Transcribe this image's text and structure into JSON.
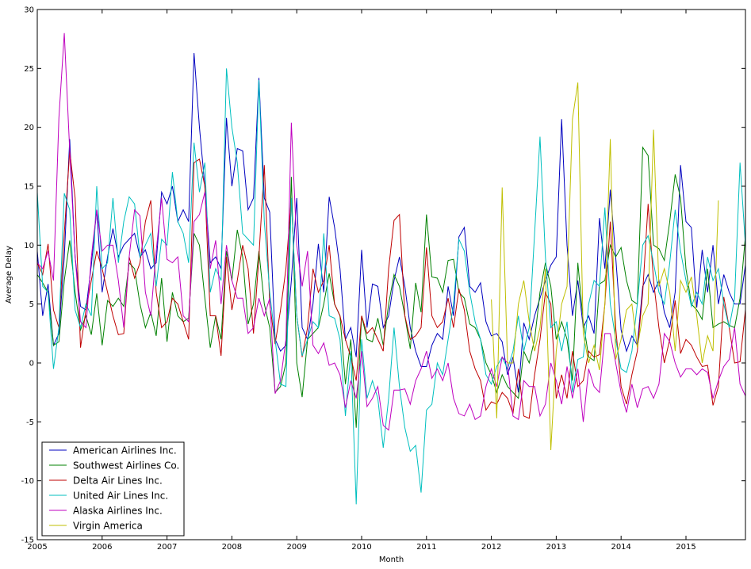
{
  "chart_data": {
    "type": "line",
    "title": "",
    "xlabel": "Month",
    "ylabel": "Average Delay",
    "xlim": [
      2005.0,
      2015.917
    ],
    "ylim": [
      -15,
      30
    ],
    "x_ticks": [
      2005,
      2006,
      2007,
      2008,
      2009,
      2010,
      2011,
      2012,
      2013,
      2014,
      2015
    ],
    "y_ticks": [
      -15,
      -10,
      -5,
      0,
      5,
      10,
      15,
      20,
      25,
      30
    ],
    "grid": false,
    "legend_position": "bottom-left",
    "series": [
      {
        "name": "American Airlines Inc.",
        "color": "#0000bf",
        "x_start": 2005.0,
        "values": [
          9.5,
          4.0,
          6.7,
          1.5,
          2.5,
          9.0,
          19.0,
          9.0,
          4.8,
          4.5,
          8.3,
          13.0,
          6.0,
          9.0,
          11.4,
          9.0,
          10.0,
          10.5,
          11.0,
          9.0,
          9.6,
          8.0,
          8.5,
          14.5,
          13.5,
          15.0,
          12.0,
          13.0,
          12.0,
          26.3,
          20.0,
          15.0,
          8.5,
          9.0,
          8.0,
          20.8,
          15.0,
          18.2,
          18.0,
          13.0,
          14.0,
          24.2,
          14.0,
          12.8,
          2.0,
          1.0,
          1.5,
          7.0,
          14.0,
          3.0,
          2.0,
          5.0,
          10.1,
          6.0,
          14.1,
          11.5,
          8.0,
          2.0,
          3.0,
          0.5,
          9.6,
          3.0,
          6.7,
          6.5,
          3.0,
          4.0,
          7.0,
          9.0,
          6.5,
          3.0,
          1.0,
          -0.3,
          -0.3,
          1.5,
          2.5,
          2.0,
          6.5,
          4.0,
          10.7,
          11.5,
          6.5,
          6.0,
          6.8,
          3.5,
          2.3,
          2.5,
          1.8,
          -1.0,
          0.5,
          -2.5,
          3.4,
          2.0,
          4.0,
          5.5,
          7.0,
          8.3,
          9.0,
          20.7,
          10.0,
          4.0,
          7.0,
          3.0,
          4.0,
          2.5,
          12.3,
          8.0,
          14.7,
          9.0,
          2.8,
          1.0,
          2.3,
          1.5,
          6.5,
          7.5,
          6.0,
          7.0,
          4.3,
          3.0,
          6.0,
          16.8,
          12.0,
          11.5,
          4.7,
          9.6,
          6.0,
          10.0,
          5.0,
          7.5,
          6.0,
          5.0,
          5.0,
          8.3,
          3.0,
          3.0,
          -1.5,
          -0.5,
          1.0,
          4.0
        ]
      },
      {
        "name": "Southwest Airlines Co.",
        "color": "#008000",
        "x_start": 2005.0,
        "values": [
          7.5,
          6.8,
          6.0,
          1.5,
          1.8,
          7.0,
          10.4,
          6.0,
          2.8,
          4.0,
          2.4,
          5.9,
          1.5,
          5.3,
          4.8,
          5.5,
          4.8,
          8.5,
          8.0,
          5.0,
          3.0,
          4.3,
          2.3,
          7.2,
          1.8,
          6.0,
          4.0,
          3.5,
          3.8,
          11.0,
          10.0,
          5.5,
          1.3,
          4.0,
          2.0,
          9.5,
          7.0,
          11.3,
          9.0,
          3.3,
          5.0,
          9.5,
          5.0,
          3.0,
          -2.5,
          -2.0,
          0.0,
          15.8,
          0.0,
          -2.9,
          2.0,
          2.5,
          3.0,
          5.0,
          7.6,
          5.0,
          4.0,
          -1.8,
          2.0,
          -5.5,
          4.0,
          2.0,
          1.8,
          3.8,
          1.5,
          5.0,
          7.5,
          6.5,
          4.0,
          1.2,
          6.8,
          4.3,
          12.6,
          7.3,
          7.2,
          6.0,
          8.7,
          8.8,
          6.0,
          5.5,
          3.3,
          3.0,
          2.0,
          0.0,
          -1.0,
          -2.5,
          -1.0,
          -2.0,
          -2.5,
          -3.0,
          1.0,
          0.0,
          2.0,
          6.0,
          8.5,
          6.5,
          2.0,
          3.5,
          2.0,
          -1.5,
          8.5,
          3.5,
          0.5,
          0.2,
          6.7,
          7.0,
          10.0,
          9.0,
          9.8,
          7.0,
          5.3,
          5.0,
          18.3,
          17.6,
          10.0,
          9.7,
          8.7,
          12.0,
          16.0,
          14.0,
          8.0,
          5.0,
          4.5,
          3.7,
          8.0,
          3.0,
          3.3,
          3.5,
          3.2,
          3.0,
          5.5,
          10.8,
          10.5,
          5.0,
          0.5,
          0.0,
          3.0,
          7.0
        ]
      },
      {
        "name": "Delta Air Lines Inc.",
        "color": "#bf0000",
        "x_start": 2005.0,
        "values": [
          8.5,
          7.5,
          10.1,
          4.5,
          3.0,
          11.0,
          18.0,
          14.0,
          1.3,
          4.5,
          7.0,
          9.5,
          8.0,
          6.0,
          4.0,
          2.4,
          2.5,
          9.0,
          7.2,
          8.5,
          12.0,
          13.8,
          6.0,
          3.0,
          3.5,
          5.5,
          5.0,
          3.5,
          2.0,
          17.0,
          17.3,
          15.0,
          4.0,
          4.0,
          0.6,
          9.0,
          4.5,
          7.0,
          10.0,
          8.0,
          2.5,
          9.0,
          16.8,
          5.0,
          1.6,
          4.5,
          8.0,
          14.0,
          4.0,
          0.5,
          3.0,
          8.0,
          6.0,
          7.0,
          10.0,
          5.0,
          4.0,
          2.0,
          0.5,
          -1.5,
          4.0,
          2.5,
          3.0,
          2.0,
          1.0,
          8.0,
          12.1,
          12.6,
          4.0,
          2.0,
          2.3,
          3.0,
          9.8,
          4.0,
          3.0,
          3.5,
          5.5,
          3.0,
          6.3,
          4.5,
          1.0,
          -0.5,
          -1.5,
          -4.0,
          -3.3,
          -3.5,
          -2.5,
          -3.0,
          -4.3,
          -0.5,
          -4.5,
          -4.7,
          -1.0,
          2.0,
          6.0,
          5.0,
          -3.0,
          -1.0,
          -3.0,
          1.0,
          -2.0,
          -1.5,
          1.0,
          0.5,
          0.7,
          5.0,
          12.0,
          3.0,
          -2.0,
          -3.5,
          -1.0,
          1.0,
          6.0,
          13.5,
          7.0,
          3.0,
          0.0,
          2.0,
          5.3,
          0.8,
          2.0,
          1.5,
          0.5,
          -0.3,
          -0.2,
          -3.6,
          -2.0,
          5.6,
          3.0,
          0.0,
          0.1,
          4.5,
          1.0,
          0.0,
          -3.7,
          -5.0,
          -2.0,
          4.0
        ]
      },
      {
        "name": "United Air Lines Inc.",
        "color": "#00bfbf",
        "x_start": 2005.0,
        "values": [
          14.5,
          6.5,
          6.0,
          -0.5,
          3.0,
          14.4,
          13.0,
          4.5,
          3.0,
          5.0,
          4.0,
          15.0,
          8.0,
          8.5,
          14.0,
          8.5,
          12.0,
          14.1,
          13.5,
          9.0,
          10.0,
          11.0,
          6.5,
          10.5,
          10.0,
          16.2,
          12.0,
          11.0,
          8.5,
          18.7,
          14.5,
          17.0,
          6.0,
          8.0,
          7.0,
          25.0,
          20.0,
          17.0,
          11.0,
          10.5,
          10.0,
          24.0,
          12.0,
          6.0,
          2.0,
          -1.8,
          -2.0,
          14.0,
          4.0,
          0.6,
          2.0,
          3.5,
          3.0,
          11.0,
          4.0,
          3.8,
          2.0,
          -4.5,
          1.0,
          -12.0,
          2.0,
          -3.0,
          -1.5,
          -3.0,
          -7.2,
          -3.0,
          3.0,
          -2.0,
          -5.5,
          -7.5,
          -7.0,
          -11.0,
          -4.0,
          -3.5,
          0.0,
          -1.0,
          2.0,
          5.0,
          10.5,
          9.5,
          6.0,
          3.5,
          2.0,
          -1.0,
          -1.8,
          -0.3,
          0.5,
          -0.5,
          1.0,
          4.0,
          1.0,
          3.0,
          11.0,
          19.2,
          9.0,
          3.0,
          3.5,
          1.0,
          3.5,
          -2.5,
          0.3,
          0.5,
          5.0,
          7.0,
          6.5,
          13.2,
          5.0,
          2.0,
          -0.5,
          -0.8,
          1.0,
          5.0,
          10.0,
          10.8,
          8.5,
          6.0,
          5.0,
          8.5,
          13.0,
          9.5,
          7.0,
          4.8,
          6.0,
          5.0,
          9.0,
          7.0,
          8.0,
          5.0,
          3.0,
          5.5,
          17.0,
          10.0,
          2.0,
          0.0,
          -2.0,
          0.5,
          6.0
        ]
      },
      {
        "name": "Alaska Airlines Inc.",
        "color": "#bf00bf",
        "x_start": 2005.0,
        "values": [
          8.5,
          8.0,
          9.5,
          7.0,
          20.8,
          28.0,
          18.0,
          9.0,
          3.5,
          3.0,
          9.0,
          13.0,
          9.5,
          10.0,
          10.0,
          7.0,
          3.0,
          9.0,
          13.0,
          12.5,
          6.0,
          4.0,
          9.5,
          14.0,
          8.8,
          8.5,
          9.0,
          4.0,
          3.5,
          12.0,
          12.6,
          14.5,
          8.0,
          10.4,
          5.0,
          10.0,
          7.0,
          5.5,
          5.5,
          2.5,
          3.0,
          5.5,
          4.0,
          5.5,
          -2.6,
          -1.5,
          2.0,
          20.4,
          10.0,
          6.5,
          9.5,
          1.5,
          0.8,
          1.7,
          -0.2,
          0.0,
          -1.0,
          -3.8,
          -1.5,
          -3.0,
          1.0,
          -3.7,
          -3.0,
          -2.0,
          -5.3,
          -5.7,
          -2.3,
          -2.3,
          -2.2,
          -3.5,
          -1.5,
          -0.5,
          1.0,
          -1.3,
          -0.5,
          -1.5,
          0.0,
          -3.0,
          -4.3,
          -4.5,
          -3.5,
          -4.8,
          -4.5,
          -2.0,
          -0.5,
          -2.0,
          0.5,
          0.0,
          -4.5,
          -4.8,
          -1.5,
          -2.0,
          -2.0,
          -4.5,
          -3.5,
          0.0,
          -1.5,
          -3.5,
          -0.3,
          -3.0,
          -0.5,
          -5.0,
          -0.5,
          -2.0,
          -2.5,
          2.5,
          2.5,
          0.0,
          -2.5,
          -4.2,
          -1.8,
          -3.8,
          -2.2,
          -2.0,
          -3.0,
          -1.8,
          2.5,
          1.8,
          0.0,
          -1.2,
          -0.5,
          -0.5,
          -1.0,
          -0.5,
          -0.8,
          -3.0,
          -1.5,
          -0.3,
          0.3,
          3.0,
          -1.8,
          -2.8,
          -2.0,
          -2.0,
          -2.0,
          -1.8,
          -3.0,
          -2.0
        ]
      },
      {
        "name": "Virgin America",
        "color": "#bfbf00",
        "x_start": 2012.0,
        "values": [
          5.4,
          -4.7,
          14.9,
          0.0,
          0.0,
          5.0,
          7.0,
          3.5,
          1.0,
          3.0,
          8.0,
          -7.4,
          1.0,
          5.0,
          6.5,
          20.7,
          23.8,
          2.5,
          0.0,
          1.5,
          -0.6,
          5.0,
          19.0,
          0.3,
          2.0,
          4.5,
          5.0,
          1.3,
          4.0,
          5.0,
          19.8,
          6.5,
          8.0,
          6.0,
          1.0,
          7.0,
          6.0,
          7.3,
          4.0,
          0.0,
          2.3,
          1.0,
          13.8
        ]
      }
    ]
  }
}
